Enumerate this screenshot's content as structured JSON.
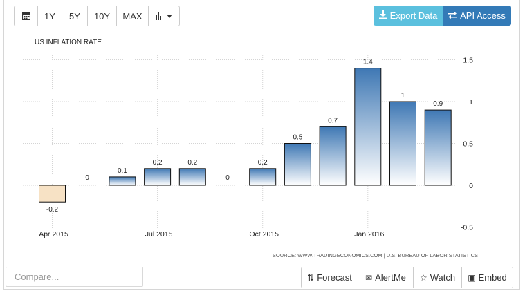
{
  "toolbar": {
    "range_buttons": [
      "1Y",
      "5Y",
      "10Y",
      "MAX"
    ],
    "calendar_icon": "calendar-icon",
    "chart_type_icon": "bar-chart-icon"
  },
  "export_button": {
    "label": "Export Data",
    "icon": "download-icon"
  },
  "api_button": {
    "label": "API Access",
    "icon": "exchange-icon"
  },
  "compare": {
    "placeholder": "Compare..."
  },
  "actions": [
    {
      "label": "Forecast",
      "icon": "sort-arrows-icon",
      "glyph": "⇅"
    },
    {
      "label": "AlertMe",
      "icon": "envelope-icon",
      "glyph": "✉"
    },
    {
      "label": "Watch",
      "icon": "star-icon",
      "glyph": "☆"
    },
    {
      "label": "Embed",
      "icon": "image-icon",
      "glyph": "▣"
    }
  ],
  "colors": {
    "bar_top_positive": "#3f78b4",
    "bar_bottom_positive": "#ffffff",
    "bar_negative": "#f7e2c5",
    "export_bg": "#5bc0de",
    "api_bg": "#337ab7"
  },
  "chart_data": {
    "type": "bar",
    "title": "US INFLATION RATE",
    "source": "SOURCE: WWW.TRADINGECONOMICS.COM | U.S. BUREAU OF LABOR STATISTICS",
    "values": [
      -0.2,
      0,
      0.1,
      0.2,
      0.2,
      0,
      0.2,
      0.5,
      0.7,
      1.4,
      1,
      0.9
    ],
    "value_labels": [
      "-0.2",
      "0",
      "0.1",
      "0.2",
      "0.2",
      "0",
      "0.2",
      "0.5",
      "0.7",
      "1.4",
      "1",
      "0.9"
    ],
    "x_tick_labels": [
      {
        "index": 0,
        "label": "Apr 2015"
      },
      {
        "index": 3,
        "label": "Jul 2015"
      },
      {
        "index": 6,
        "label": "Oct 2015"
      },
      {
        "index": 9,
        "label": "Jan 2016"
      }
    ],
    "y_ticks": [
      1.5,
      1,
      0.5,
      0,
      -0.5
    ],
    "y_tick_labels": [
      "1.5",
      "1",
      "0.5",
      "0",
      "-0.5"
    ],
    "ylim": [
      -0.5,
      1.5
    ],
    "grid": true,
    "y_axis_position": "right"
  }
}
